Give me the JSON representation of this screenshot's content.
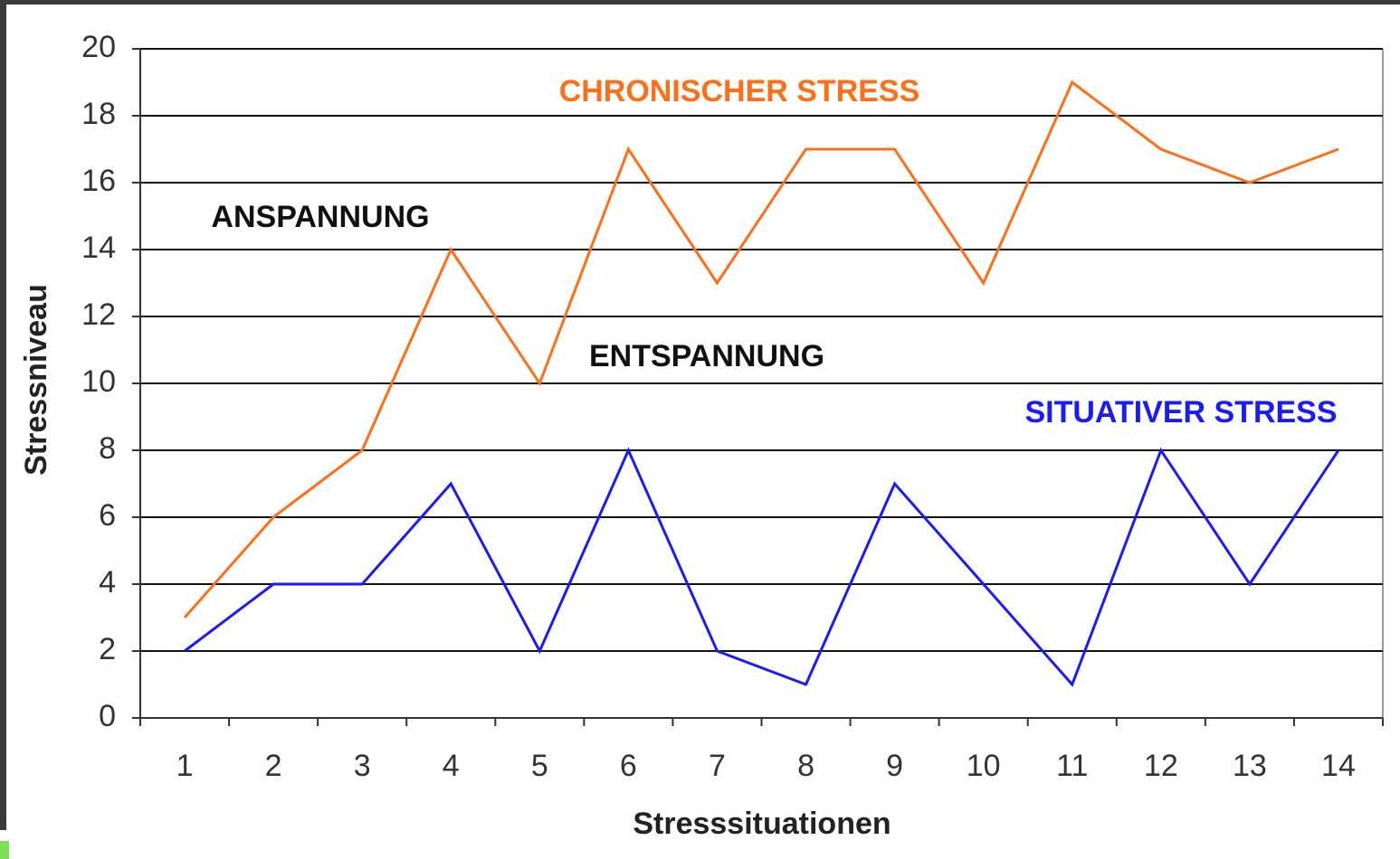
{
  "chart_data": {
    "type": "line",
    "xlabel": "Stresssituationen",
    "ylabel": "Stressniveau",
    "categories": [
      "1",
      "2",
      "3",
      "4",
      "5",
      "6",
      "7",
      "8",
      "9",
      "10",
      "11",
      "12",
      "13",
      "14"
    ],
    "series": [
      {
        "name": "CHRONISCHER STRESS",
        "color": "#ff6f1a",
        "values": [
          3,
          6,
          8,
          14,
          10,
          17,
          13,
          17,
          17,
          13,
          19,
          17,
          16,
          17
        ]
      },
      {
        "name": "SITUATIVER STRESS",
        "color": "#1a1aff",
        "values": [
          2,
          4,
          4,
          7,
          2,
          8,
          2,
          1,
          7,
          4,
          1,
          8,
          4,
          8
        ]
      }
    ],
    "annotations": [
      "ANSPANNUNG",
      "ENTSPANNUNG"
    ],
    "ylim": [
      0,
      20
    ],
    "yticks": [
      0,
      2,
      4,
      6,
      8,
      10,
      12,
      14,
      16,
      18,
      20
    ],
    "grid": true
  }
}
